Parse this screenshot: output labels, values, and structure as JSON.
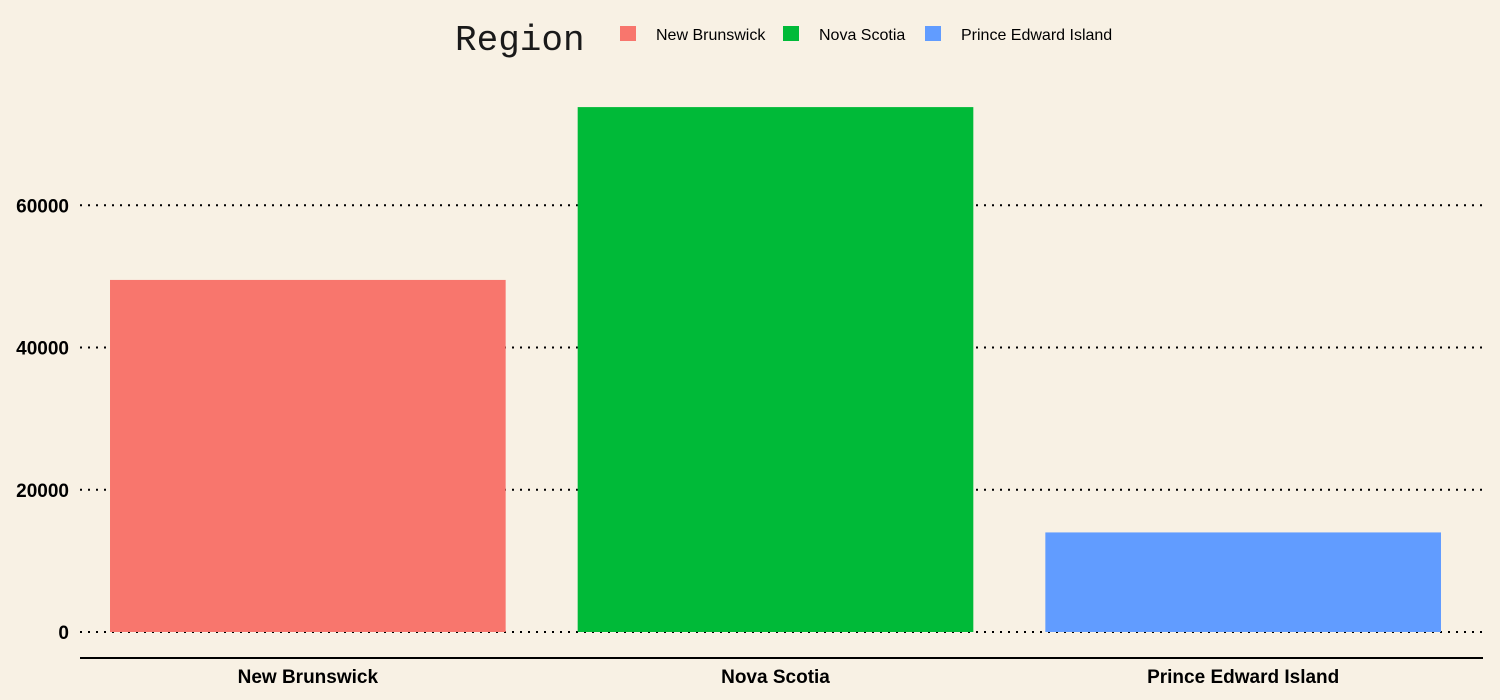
{
  "chart_data": {
    "type": "bar",
    "title": "",
    "xlabel": "",
    "ylabel": "",
    "categories": [
      "New Brunswick",
      "Nova Scotia",
      "Prince Edward Island"
    ],
    "values": [
      49500,
      73800,
      14000
    ],
    "ylim": [
      0,
      80000
    ],
    "yticks": [
      0,
      20000,
      40000,
      60000
    ],
    "ytick_labels": [
      "0",
      "20000",
      "40000",
      "60000"
    ],
    "grid": "horizontal dotted",
    "legend": {
      "title": "Region",
      "placement": "top",
      "entries": [
        "New Brunswick",
        "Nova Scotia",
        "Prince Edward Island"
      ]
    },
    "colors": [
      "#f8766d",
      "#00ba38",
      "#619cff"
    ],
    "background": "#f8f1e4"
  }
}
